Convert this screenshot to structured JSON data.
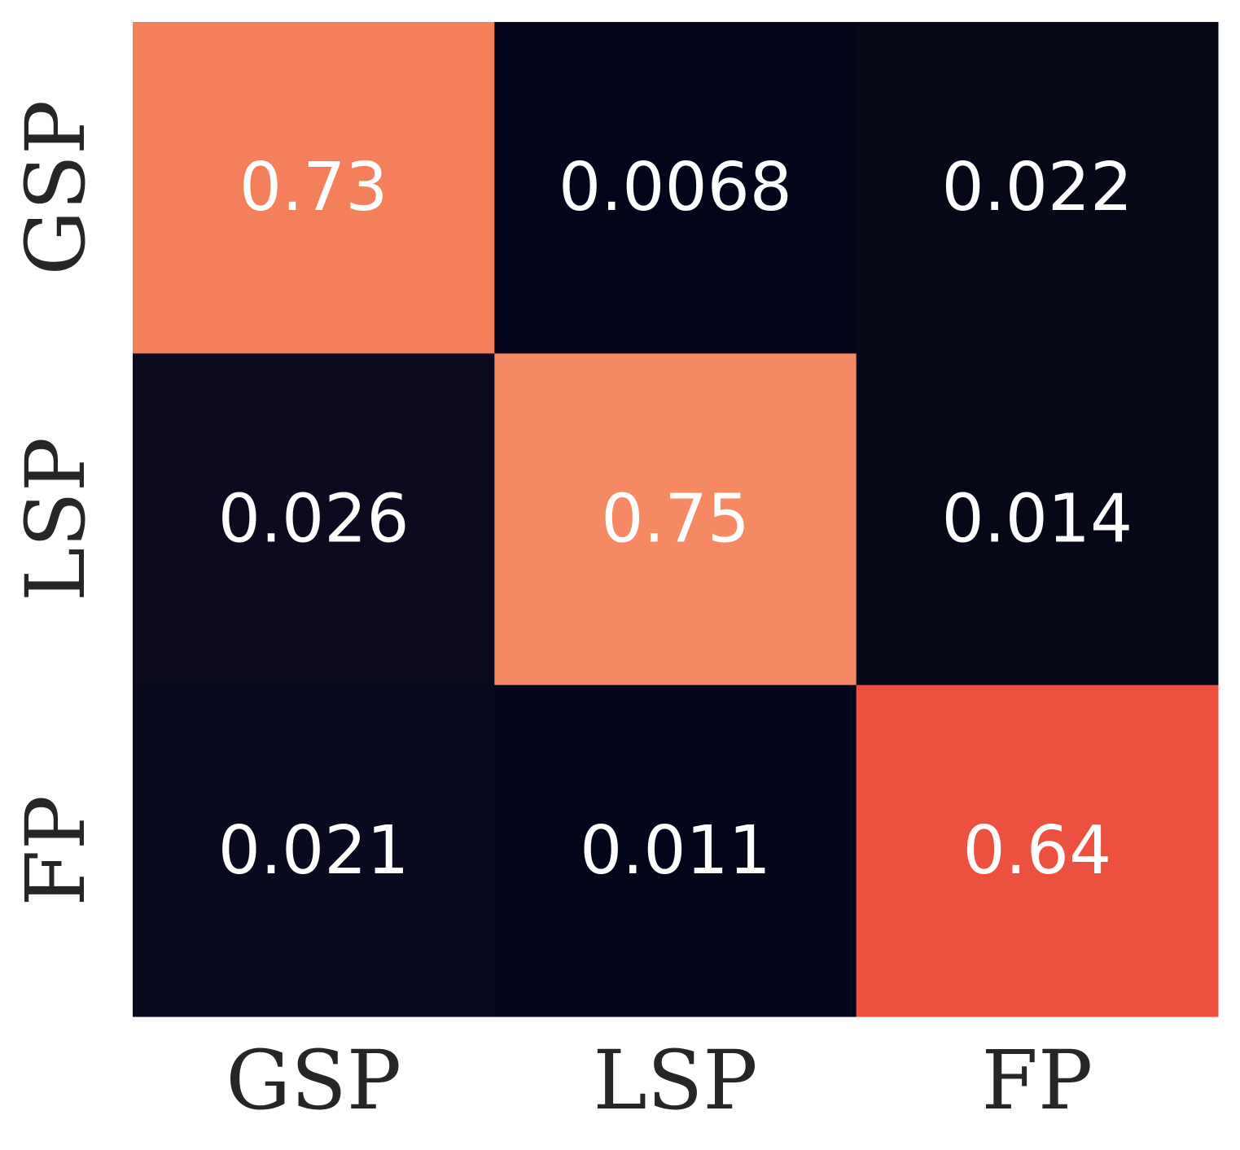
{
  "chart_data": {
    "type": "heatmap",
    "x_categories": [
      "GSP",
      "LSP",
      "FP"
    ],
    "y_categories": [
      "GSP",
      "LSP",
      "FP"
    ],
    "values": [
      [
        0.73,
        0.0068,
        0.022
      ],
      [
        0.026,
        0.75,
        0.014
      ],
      [
        0.021,
        0.011,
        0.64
      ]
    ],
    "value_labels": [
      [
        "0.73",
        "0.0068",
        "0.022"
      ],
      [
        "0.026",
        "0.75",
        "0.014"
      ],
      [
        "0.021",
        "0.011",
        "0.64"
      ]
    ],
    "colors": [
      [
        "#f37f5b",
        "#03051a",
        "#060818"
      ],
      [
        "#0c0a1f",
        "#f58964",
        "#060818"
      ],
      [
        "#090920",
        "#03051a",
        "#ec5140"
      ]
    ],
    "colorbar": false,
    "grid": false
  }
}
